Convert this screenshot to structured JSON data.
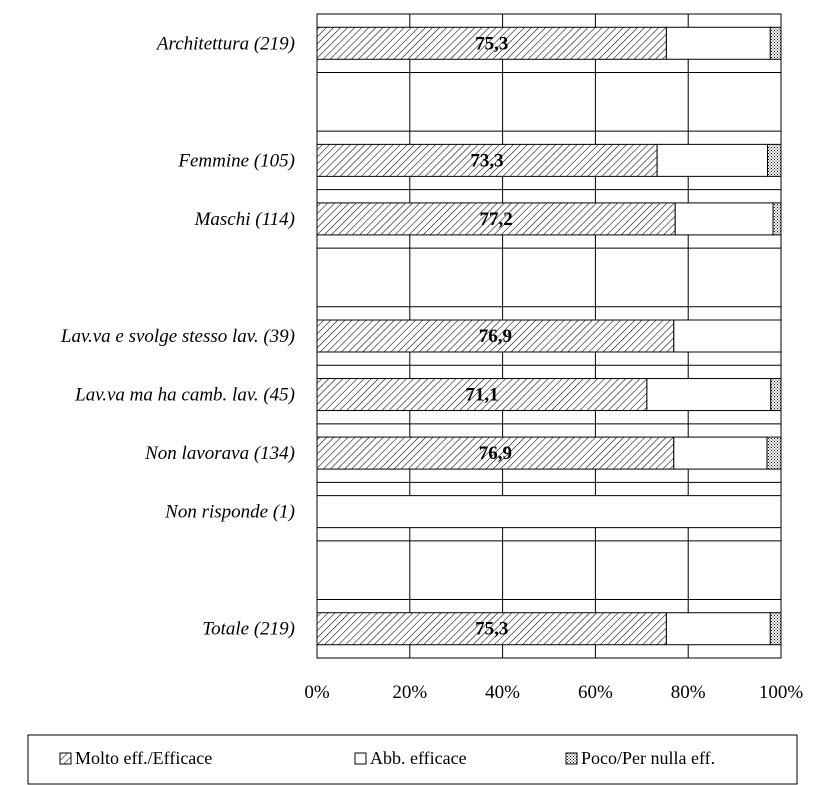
{
  "chart_data": {
    "type": "bar",
    "orientation": "horizontal",
    "stacked": "percent",
    "categories": [
      "Architettura (219)",
      "",
      "Femmine (105)",
      "Maschi (114)",
      "",
      "Lav.va e svolge stesso lav. (39)",
      "Lav.va ma ha camb. lav. (45)",
      "Non lavorava (134)",
      "Non risponde (1)",
      "",
      "Totale (219)"
    ],
    "series": [
      {
        "name": "Molto eff./Efficace",
        "pattern": "diagonal-hatch",
        "values": [
          75.3,
          null,
          73.3,
          77.2,
          null,
          76.9,
          71.1,
          76.9,
          0,
          null,
          75.3
        ]
      },
      {
        "name": "Abb. efficace",
        "pattern": "white",
        "values": [
          22.4,
          null,
          23.8,
          21.1,
          null,
          23.1,
          26.7,
          20.1,
          100,
          null,
          22.4
        ]
      },
      {
        "name": "Poco/Per nulla eff.",
        "pattern": "dots",
        "values": [
          2.3,
          null,
          2.9,
          1.7,
          null,
          0,
          2.2,
          3.0,
          0,
          null,
          2.3
        ]
      }
    ],
    "data_labels": [
      "75,3",
      "",
      "73,3",
      "77,2",
      "",
      "76,9",
      "71,1",
      "76,9",
      "",
      "",
      "75,3"
    ],
    "x_ticks": [
      "0%",
      "20%",
      "40%",
      "60%",
      "80%",
      "100%"
    ],
    "xlim": [
      0,
      100
    ],
    "grid": true,
    "legend_position": "bottom",
    "colors": {
      "hatch": "#000000",
      "background": "#ffffff",
      "grid": "#000000"
    }
  }
}
